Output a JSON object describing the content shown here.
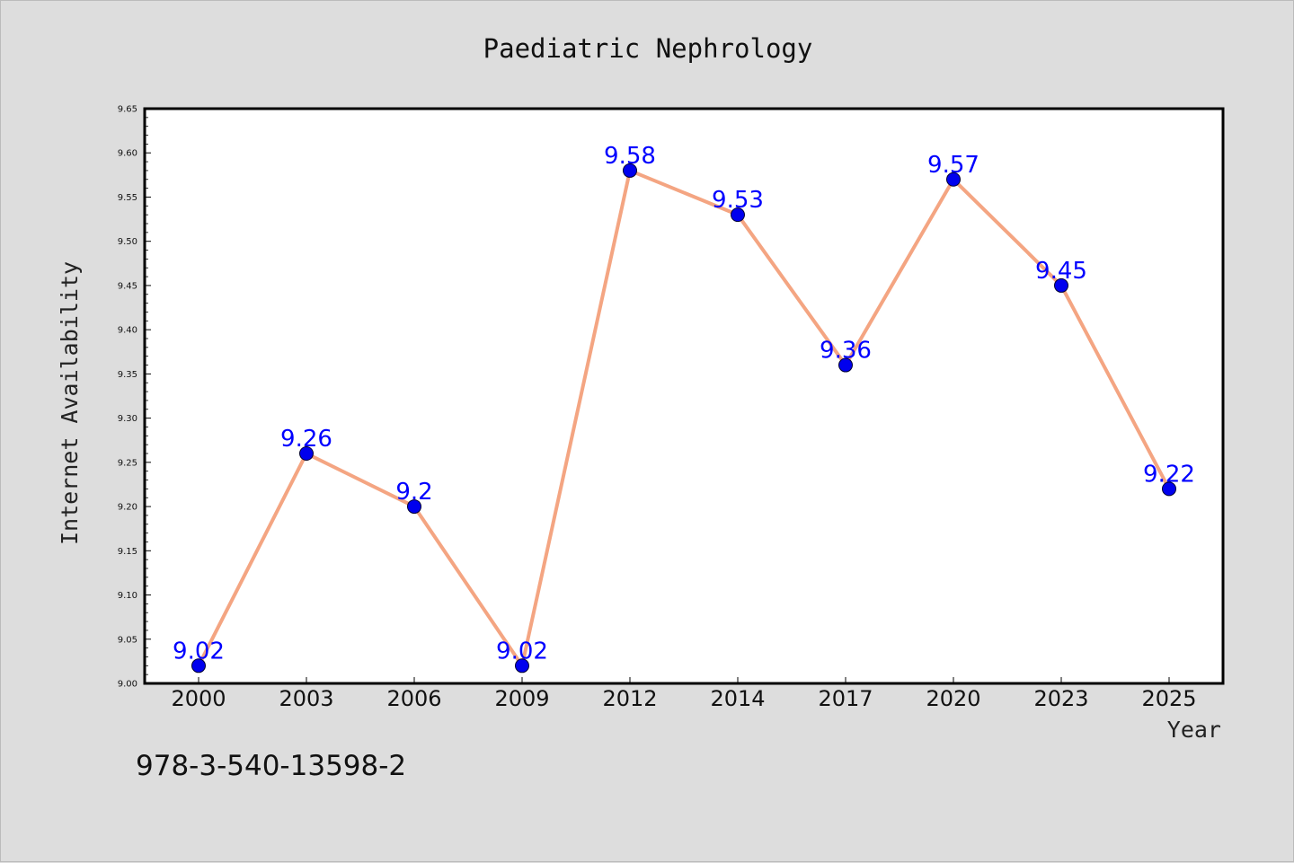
{
  "chart_data": {
    "type": "line",
    "title": "Paediatric Nephrology",
    "xlabel": "Year",
    "ylabel": "Internet Availability",
    "categories": [
      "2000",
      "2003",
      "2006",
      "2009",
      "2012",
      "2014",
      "2017",
      "2020",
      "2023",
      "2025"
    ],
    "values": [
      9.02,
      9.26,
      9.2,
      9.02,
      9.58,
      9.53,
      9.36,
      9.57,
      9.45,
      9.22
    ],
    "data_labels": [
      "9.02",
      "9.26",
      "9.2",
      "9.02",
      "9.58",
      "9.53",
      "9.36",
      "9.57",
      "9.45",
      "9.22"
    ],
    "ylim": [
      9.0,
      9.65
    ],
    "yticks": [
      "9.00",
      "9.05",
      "9.10",
      "9.15",
      "9.20",
      "9.25",
      "9.30",
      "9.35",
      "9.40",
      "9.45",
      "9.50",
      "9.55",
      "9.60",
      "9.65"
    ],
    "grid": false,
    "legend": "none",
    "line_color": "#f4a582",
    "marker_color": "#0000ee",
    "label_color": "#0000ff"
  },
  "footer": {
    "isbn": "978-3-540-13598-2"
  }
}
